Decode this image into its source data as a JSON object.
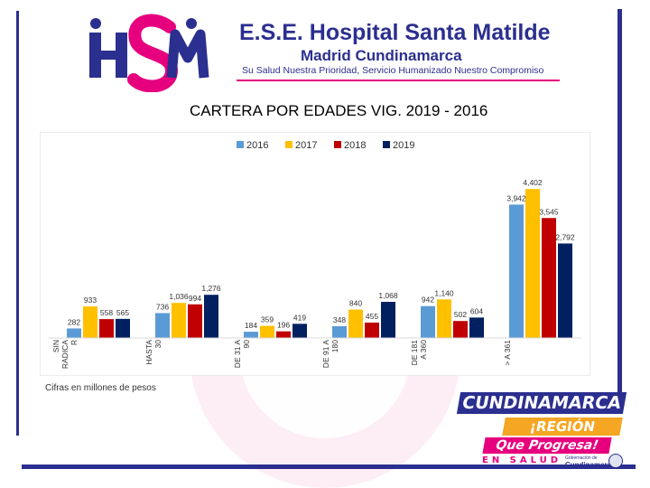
{
  "header": {
    "logo_text": "HSM",
    "title": "E.S.E. Hospital Santa Matilde",
    "subtitle": "Madrid Cundinamarca",
    "slogan": "Su Salud Nuestra Prioridad, Servicio Humanizado Nuestro Compromiso"
  },
  "footer_logo": {
    "line1": "CUNDINAMARCA",
    "line2": "¡REGIÓN",
    "line3": "Que Progresa!",
    "line4": "EN SALUD",
    "gov_small": "Gobernación de",
    "gov_name": "Cundinamarca"
  },
  "colors": {
    "brand_blue": "#2b2f8f",
    "brand_pink": "#e6007e",
    "s2016": "#5b9bd5",
    "s2017": "#ffc000",
    "s2018": "#c00000",
    "s2019": "#002060"
  },
  "chart_data": {
    "type": "bar",
    "title": "CARTERA POR EDADES VIG. 2019 - 2016",
    "legend_position": "top",
    "grid": false,
    "ylim": [
      0,
      4700
    ],
    "categories": [
      [
        "SIN",
        "RADICA",
        "R"
      ],
      [
        "HASTA",
        "30"
      ],
      [
        "DE 31 A",
        "90"
      ],
      [
        "DE 91 A",
        "180"
      ],
      [
        "DE 181",
        "A 360"
      ],
      [
        "> A 361"
      ]
    ],
    "series": [
      {
        "name": "2016",
        "values": [
          282,
          736,
          184,
          348,
          942,
          3942
        ],
        "labels": [
          "282",
          "736",
          "184",
          "348",
          "942",
          "3,942"
        ]
      },
      {
        "name": "2017",
        "values": [
          933,
          1036,
          359,
          840,
          1140,
          4402
        ],
        "labels": [
          "933",
          "1,036",
          "359",
          "840",
          "1,140",
          "4,402"
        ]
      },
      {
        "name": "2018",
        "values": [
          558,
          994,
          196,
          455,
          502,
          3545
        ],
        "labels": [
          "558",
          "994",
          "196",
          "455",
          "502",
          "3,545"
        ]
      },
      {
        "name": "2019",
        "values": [
          565,
          1276,
          419,
          1068,
          604,
          2792
        ],
        "labels": [
          "565",
          "1,276",
          "419",
          "1,068",
          "604",
          "2,792"
        ]
      }
    ],
    "note": "Cifras en millones de pesos"
  }
}
